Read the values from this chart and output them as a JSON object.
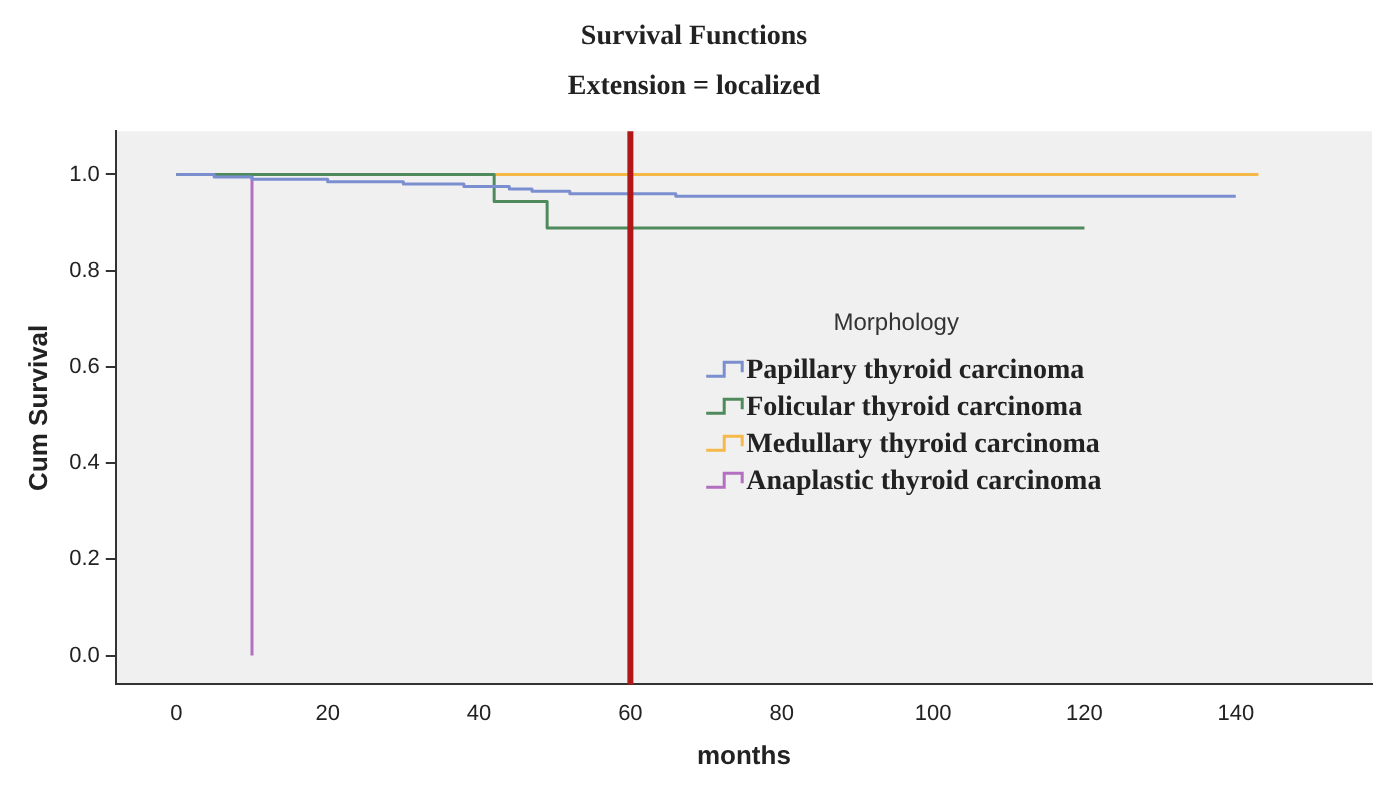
{
  "chart_data": {
    "type": "step",
    "title": "Survival Functions",
    "subtitle": "Extension = localized",
    "xlabel": "months",
    "ylabel": "Cum Survival",
    "legend_title": "Morphology",
    "xlim": [
      -8,
      158
    ],
    "xticks": [
      0,
      20,
      40,
      60,
      80,
      100,
      120,
      140
    ],
    "ylim": [
      -0.06,
      1.09
    ],
    "yticks": [
      {
        "value": 0,
        "label": "0.0"
      },
      {
        "value": 0.2,
        "label": "0.2"
      },
      {
        "value": 0.4,
        "label": "0.4"
      },
      {
        "value": 0.6,
        "label": "0.6"
      },
      {
        "value": 0.8,
        "label": "0.8"
      },
      {
        "value": 1,
        "label": "1.0"
      }
    ],
    "grid": false,
    "legend": "right",
    "marker": "none",
    "line_style": "solid",
    "ref_lines": [
      {
        "axis": "x",
        "value": 60,
        "color": "#b01818"
      }
    ],
    "series": [
      {
        "name": "Papillary thyroid carcinoma",
        "color": "#7b8fd0",
        "x": [
          0,
          5,
          10,
          20,
          30,
          38,
          44,
          47,
          52,
          66,
          140
        ],
        "values": [
          1,
          0.995,
          0.99,
          0.985,
          0.98,
          0.975,
          0.97,
          0.965,
          0.96,
          0.955,
          0.955
        ]
      },
      {
        "name": "Folicular thyroid carcinoma",
        "color": "#4f8a5c",
        "x": [
          0,
          42,
          49,
          120
        ],
        "values": [
          1,
          0.944,
          0.889,
          0.889
        ]
      },
      {
        "name": "Medullary thyroid carcinoma",
        "color": "#f5b94a",
        "x": [
          0,
          143
        ],
        "values": [
          1,
          1
        ]
      },
      {
        "name": "Anaplastic thyroid carcinoma",
        "color": "#b36fc0",
        "x": [
          0,
          10
        ],
        "values": [
          1,
          0
        ]
      }
    ]
  }
}
